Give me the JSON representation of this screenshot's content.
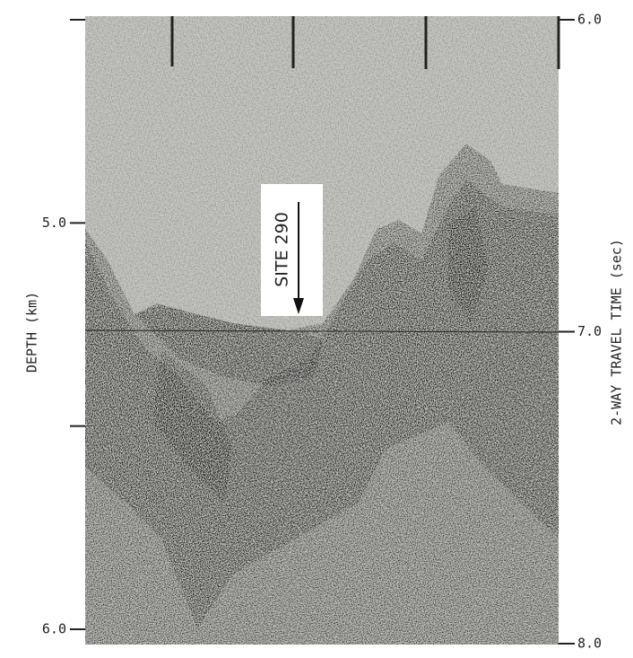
{
  "chart_data": {
    "type": "seismic-profile",
    "ylabel": "DEPTH (km)",
    "ylim": [
      4.5,
      6.0
    ],
    "yticks": [
      {
        "value": 4.5,
        "label": null
      },
      {
        "value": 5.0,
        "label": "5.0"
      },
      {
        "value": 5.5,
        "label": null
      },
      {
        "value": 6.0,
        "label": "6.0"
      }
    ],
    "y2label": "2-WAY TRAVEL TIME (sec)",
    "y2lim": [
      6.0,
      8.0
    ],
    "y2ticks": [
      {
        "value": 6.0,
        "label": "6.0"
      },
      {
        "value": 7.0,
        "label": "7.0"
      },
      {
        "value": 8.0,
        "label": "8.0"
      }
    ],
    "annotation": "SITE 290"
  }
}
